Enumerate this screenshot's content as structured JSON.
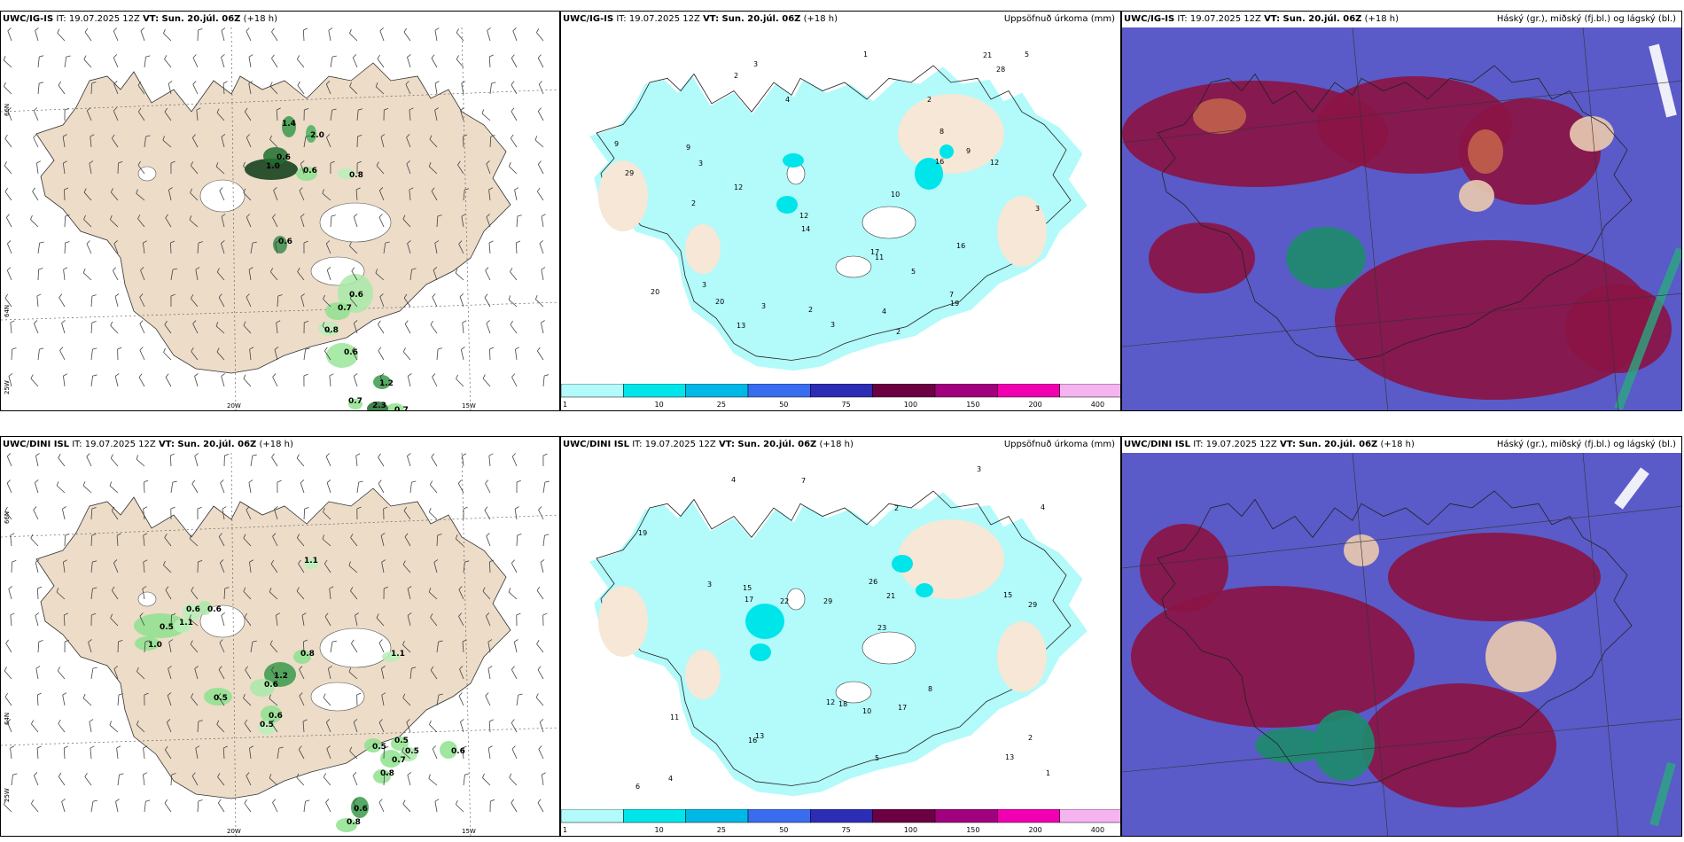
{
  "panels": [
    {
      "model": "UWC/IG-IS",
      "it": "IT: 19.07.2025 12Z",
      "vt": "VT: Sun. 20.júl. 06Z",
      "lead": "(+18 h)",
      "right": ""
    },
    {
      "model": "UWC/IG-IS",
      "it": "IT: 19.07.2025 12Z",
      "vt": "VT: Sun. 20.júl. 06Z",
      "lead": "(+18 h)",
      "right": "Uppsöfnuð úrkoma (mm)"
    },
    {
      "model": "UWC/IG-IS",
      "it": "IT: 19.07.2025 12Z",
      "vt": "VT: Sun. 20.júl. 06Z",
      "lead": "(+18 h)",
      "right": "Háský (gr.), miðský (fj.bl.) og lágský (bl.)"
    },
    {
      "model": "UWC/DINI ISL",
      "it": "IT: 19.07.2025 12Z",
      "vt": "VT: Sun. 20.júl. 06Z",
      "lead": "(+18 h)",
      "right": ""
    },
    {
      "model": "UWC/DINI ISL",
      "it": "IT: 19.07.2025 12Z",
      "vt": "VT: Sun. 20.júl. 06Z",
      "lead": "(+18 h)",
      "right": "Uppsöfnuð úrkoma (mm)"
    },
    {
      "model": "UWC/DINI ISL",
      "it": "IT: 19.07.2025 12Z",
      "vt": "VT: Sun. 20.júl. 06Z",
      "lead": "(+18 h)",
      "right": "Háský (gr.), miðský (fj.bl.) og lágský (bl.)"
    }
  ],
  "axis_labels": {
    "lat66": "66N",
    "lat64": "64N",
    "lon20": "20W",
    "lon15": "15W",
    "lon25": "25W"
  },
  "colorbar": {
    "ticks": [
      "1",
      "10",
      "25",
      "50",
      "75",
      "100",
      "150",
      "200",
      "400"
    ],
    "colors": [
      "#b3fafa",
      "#00e5ea",
      "#00b8e6",
      "#3a6cf0",
      "#2c2cb4",
      "#6b0043",
      "#a1007e",
      "#f000b0",
      "#f5b3f0"
    ]
  },
  "precip_labels_top": [
    "1.4",
    "2.0",
    "1.0",
    "0.6",
    "0.6",
    "0.8",
    "0.6",
    "0.6",
    "0.7",
    "0.8",
    "0.6",
    "1.2",
    "0.7",
    "0.7",
    "2.3"
  ],
  "precip_labels_bottom": [
    "1.1",
    "0.5",
    "0.6",
    "1.0",
    "1.1",
    "0.6",
    "0.8",
    "1.2",
    "1.1",
    "0.5",
    "0.6",
    "0.6",
    "0.5",
    "0.5",
    "0.5",
    "0.7",
    "0.5",
    "0.6",
    "0.8",
    "0.6",
    "0.8"
  ],
  "accum_labels_top": [
    "2",
    "2",
    "3",
    "9",
    "9",
    "4",
    "3",
    "12",
    "14",
    "20",
    "20",
    "9",
    "12",
    "17",
    "16",
    "21",
    "29",
    "28",
    "16",
    "12",
    "7",
    "11",
    "13",
    "19",
    "10",
    "8",
    "2",
    "3",
    "3",
    "4",
    "5",
    "5",
    "2",
    "3",
    "3",
    "2",
    "1"
  ],
  "accum_labels_bottom": [
    "6",
    "2",
    "4",
    "3",
    "8",
    "21",
    "23",
    "29",
    "22",
    "18",
    "26",
    "29",
    "17",
    "13",
    "10",
    "16",
    "19",
    "17",
    "15",
    "11",
    "12",
    "15",
    "13",
    "7",
    "4",
    "5",
    "3",
    "4",
    "2",
    "1"
  ]
}
